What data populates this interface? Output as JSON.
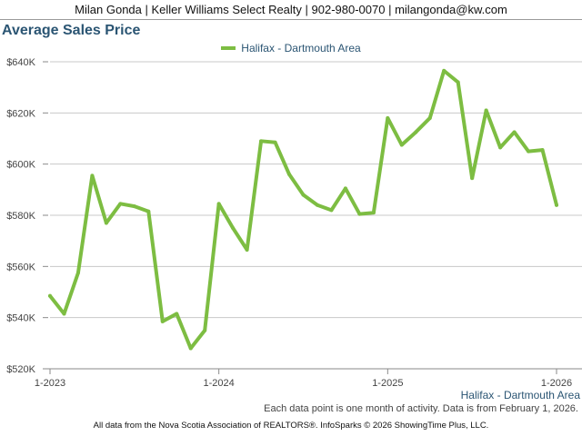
{
  "header": {
    "banner": "Milan Gonda | Keller Williams Select Realty | 902-980-0070 | milangonda@kw.com"
  },
  "chart_data": {
    "type": "line",
    "title": "Average Sales Price",
    "legend_position": "top-center",
    "grid": true,
    "x_ticks": [
      "1-2023",
      "1-2024",
      "1-2025",
      "1-2026"
    ],
    "y_ticks": [
      "$520K",
      "$540K",
      "$560K",
      "$580K",
      "$600K",
      "$620K",
      "$640K"
    ],
    "ylim": [
      520000,
      640000
    ],
    "x": [
      "2023-01",
      "2023-02",
      "2023-03",
      "2023-04",
      "2023-05",
      "2023-06",
      "2023-07",
      "2023-08",
      "2023-09",
      "2023-10",
      "2023-11",
      "2023-12",
      "2024-01",
      "2024-02",
      "2024-03",
      "2024-04",
      "2024-05",
      "2024-06",
      "2024-07",
      "2024-08",
      "2024-09",
      "2024-10",
      "2024-11",
      "2024-12",
      "2025-01",
      "2025-02",
      "2025-03",
      "2025-04",
      "2025-05",
      "2025-06",
      "2025-07",
      "2025-08",
      "2025-09",
      "2025-10",
      "2025-11",
      "2025-12",
      "2026-01"
    ],
    "series": [
      {
        "name": "Halifax - Dartmouth Area",
        "color": "#7dbd42",
        "values": [
          548500,
          541500,
          557500,
          595500,
          577000,
          584500,
          583500,
          581500,
          538500,
          541500,
          528000,
          535000,
          584500,
          575000,
          566500,
          609000,
          608500,
          596000,
          588000,
          584000,
          582000,
          590500,
          580500,
          581000,
          618000,
          607500,
          612500,
          618000,
          636500,
          632000,
          594500,
          621000,
          606500,
          612500,
          605000,
          605500,
          584000
        ]
      }
    ]
  },
  "area_label": "Halifax - Dartmouth Area",
  "footnote": "Each data point is one month of activity. Data is from February 1, 2026.",
  "source": "All data from the Nova Scotia Association of REALTORS®. InfoSparks © 2026 ShowingTime Plus, LLC."
}
